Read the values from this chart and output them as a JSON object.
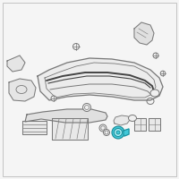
{
  "background_color": "#f5f5f5",
  "border_color": "#bbbbbb",
  "highlight_color": "#40c8d8",
  "line_color": "#777777",
  "dark_color": "#444444",
  "fill_color": "#f0f0f0",
  "figsize": [
    2.0,
    2.0
  ],
  "dpi": 100
}
